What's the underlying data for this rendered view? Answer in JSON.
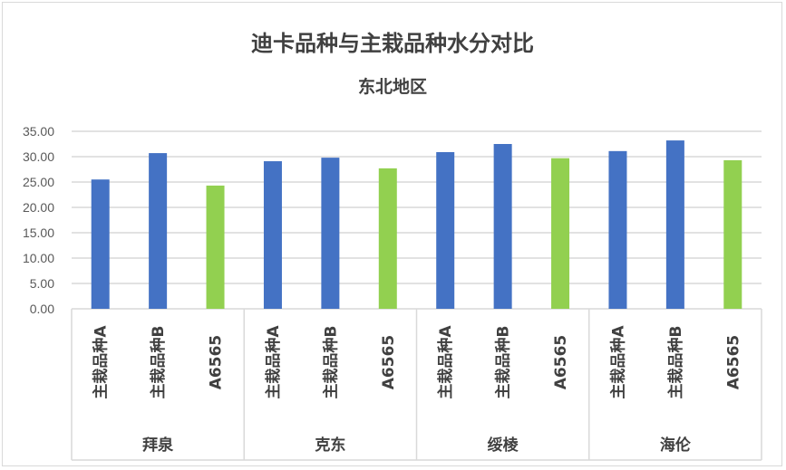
{
  "chart_data": {
    "type": "bar",
    "title": "迪卡品种与主栽品种水分对比",
    "subtitle": "东北地区",
    "xlabel": "",
    "ylabel": "",
    "ylim": [
      0,
      35
    ],
    "yticks": [
      "0.00",
      "5.00",
      "10.00",
      "15.00",
      "20.00",
      "25.00",
      "30.00",
      "35.00"
    ],
    "grid": true,
    "legend": "none",
    "groups": [
      {
        "name": "拜泉",
        "categories": [
          "主栽品种A",
          "主栽品种B",
          "A6565"
        ],
        "values": [
          25.5,
          30.7,
          24.3
        ]
      },
      {
        "name": "克东",
        "categories": [
          "主栽品种A",
          "主栽品种B",
          "A6565"
        ],
        "values": [
          29.1,
          29.8,
          27.7
        ]
      },
      {
        "name": "绥棱",
        "categories": [
          "主栽品种A",
          "主栽品种B",
          "A6565"
        ],
        "values": [
          30.9,
          32.5,
          29.7
        ]
      },
      {
        "name": "海伦",
        "categories": [
          "主栽品种A",
          "主栽品种B",
          "A6565"
        ],
        "values": [
          31.1,
          33.2,
          29.3
        ]
      }
    ],
    "colors": {
      "主栽品种A": "#4472c4",
      "主栽品种B": "#4472c4",
      "A6565": "#92d050"
    }
  }
}
